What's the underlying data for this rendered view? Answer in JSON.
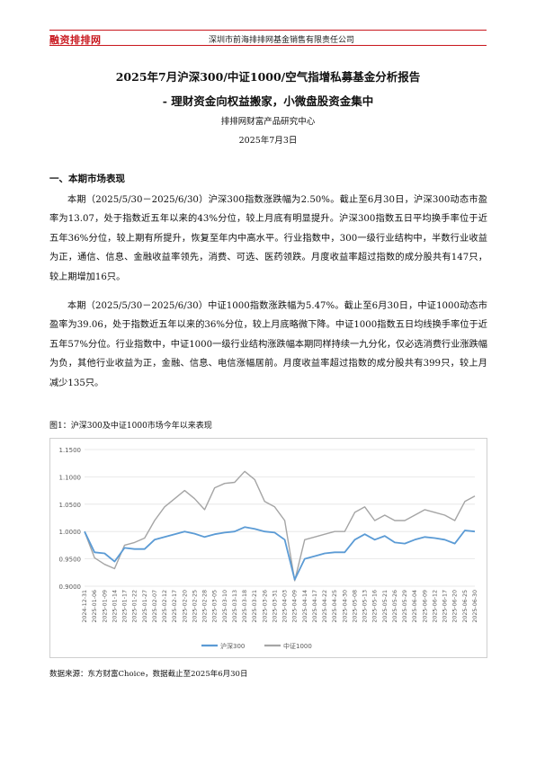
{
  "header": {
    "logo_text": "融资排排网",
    "company": "深圳市前海排排网基金销售有限责任公司"
  },
  "title_line1": "2025年7月沪深300/中证1000/空气指增私募基金分析报告",
  "title_line2": "-  理财资金向权益搬家，小微盘股资金集中",
  "author": "排排网财富产品研究中心",
  "date": "2025年7月3日",
  "section1_heading": "一、本期市场表现",
  "para1": "本期（2025/5/30－2025/6/30）沪深300指数涨跌幅为2.50%。截止至6月30日，沪深300动态市盈率为13.07，处于指数近五年以来的43%分位，较上月底有明显提升。沪深300指数五日平均换手率位于近五年36%分位，较上期有所提升，恢复至年内中高水平。行业指数中，300一级行业结构中，半数行业收益为正，通信、信息、金融收益率领先，消费、可选、医药领跌。月度收益率超过指数的成分股共有147只，较上期增加16只。",
  "para2": "本期（2025/5/30－2025/6/30）中证1000指数涨跌幅为5.47%。截止至6月30日，中证1000动态市盈率为39.06，处于指数近五年以来的36%分位，较上月底略微下降。中证1000指数五日均线换手率位于近五年57%分位。行业指数中，中证1000一级行业结构涨跌幅本期同样持续一九分化，仅必选消费行业涨跌幅为负，其他行业收益为正，金融、信息、电信涨幅居前。月度收益率超过指数的成分股共有399只，较上月减少135只。",
  "figure_caption": "图1：沪深300及中证1000市场今年以来表现",
  "source": "数据来源：东方财富Choice，数据截止至2025年6月30日",
  "colors": {
    "hs300": "#5b9bd5",
    "zz1000": "#a5a5a5",
    "accent": "#c8161d"
  },
  "chart_data": {
    "type": "line",
    "title": "",
    "xlabel": "",
    "ylabel": "",
    "ylim": [
      0.9,
      1.15
    ],
    "yticks": [
      "0.9000",
      "0.9500",
      "1.0000",
      "1.0500",
      "1.1000",
      "1.1500"
    ],
    "x": [
      "2024-12-31",
      "2025-01-06",
      "2025-01-09",
      "2025-01-14",
      "2025-01-17",
      "2025-01-22",
      "2025-01-27",
      "2025-02-07",
      "2025-02-12",
      "2025-02-17",
      "2025-02-20",
      "2025-02-25",
      "2025-02-28",
      "2025-03-05",
      "2025-03-10",
      "2025-03-13",
      "2025-03-18",
      "2025-03-21",
      "2025-03-26",
      "2025-03-31",
      "2025-04-03",
      "2025-04-09",
      "2025-04-14",
      "2025-04-17",
      "2025-04-22",
      "2025-04-25",
      "2025-04-30",
      "2025-05-08",
      "2025-05-13",
      "2025-05-16",
      "2025-05-21",
      "2025-05-26",
      "2025-05-29",
      "2025-06-04",
      "2025-06-09",
      "2025-06-12",
      "2025-06-17",
      "2025-06-20",
      "2025-06-25",
      "2025-06-30"
    ],
    "legend_position": "bottom",
    "grid": true,
    "series": [
      {
        "name": "沪深300",
        "values": [
          1.0,
          0.962,
          0.96,
          0.945,
          0.97,
          0.968,
          0.968,
          0.985,
          0.99,
          0.995,
          1.0,
          0.996,
          0.99,
          0.995,
          0.998,
          1.0,
          1.008,
          1.005,
          1.0,
          0.998,
          0.985,
          0.912,
          0.95,
          0.955,
          0.96,
          0.962,
          0.962,
          0.985,
          0.995,
          0.985,
          0.992,
          0.98,
          0.978,
          0.985,
          0.99,
          0.988,
          0.985,
          0.978,
          1.002,
          1.0
        ]
      },
      {
        "name": "中证1000",
        "values": [
          1.0,
          0.952,
          0.94,
          0.932,
          0.975,
          0.98,
          0.988,
          1.02,
          1.045,
          1.06,
          1.075,
          1.06,
          1.04,
          1.08,
          1.088,
          1.09,
          1.11,
          1.095,
          1.055,
          1.045,
          1.02,
          0.91,
          0.985,
          0.99,
          0.995,
          1.0,
          1.0,
          1.035,
          1.045,
          1.02,
          1.03,
          1.02,
          1.02,
          1.03,
          1.04,
          1.035,
          1.03,
          1.02,
          1.055,
          1.065
        ]
      }
    ]
  }
}
